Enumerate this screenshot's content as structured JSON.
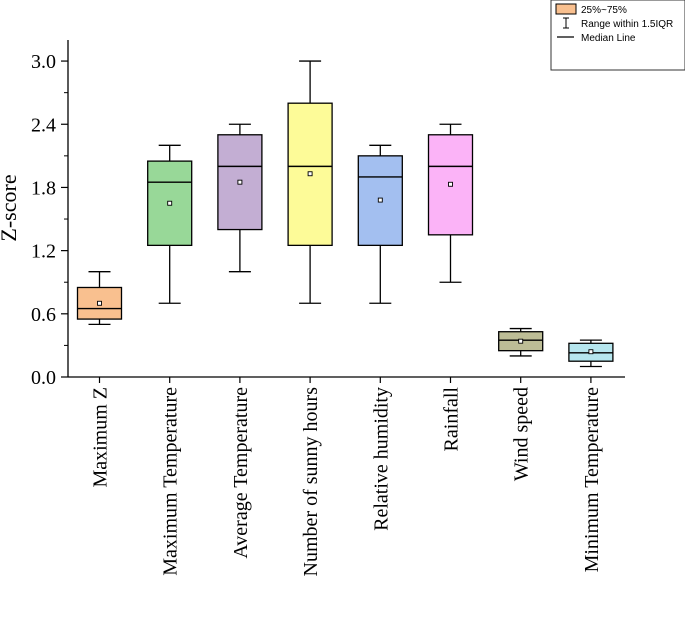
{
  "chart_data": {
    "type": "box",
    "ylabel": "Z-score",
    "xlabel": "",
    "ylim": [
      0,
      3.2
    ],
    "yticks": [
      "0.0",
      "0.6",
      "1.2",
      "1.8",
      "2.4",
      "3.0"
    ],
    "categories": [
      "Maximum Z",
      "Maximum  Temperature",
      "Average Temperature",
      "Number of sunny hours",
      "Relative humidity",
      "Rainfall",
      "Wind speed",
      "Minimum Temperature"
    ],
    "boxes": [
      {
        "whisker_low": 0.5,
        "q1": 0.55,
        "median": 0.65,
        "q3": 0.85,
        "whisker_high": 1.0,
        "mean": 0.7,
        "color": "#f9c08f"
      },
      {
        "whisker_low": 0.7,
        "q1": 1.25,
        "median": 1.85,
        "q3": 2.05,
        "whisker_high": 2.2,
        "mean": 1.65,
        "color": "#98d898"
      },
      {
        "whisker_low": 1.0,
        "q1": 1.4,
        "median": 2.0,
        "q3": 2.3,
        "whisker_high": 2.4,
        "mean": 1.85,
        "color": "#c3aed3"
      },
      {
        "whisker_low": 0.7,
        "q1": 1.25,
        "median": 2.0,
        "q3": 2.6,
        "whisker_high": 3.0,
        "mean": 1.93,
        "color": "#fdfb98"
      },
      {
        "whisker_low": 0.7,
        "q1": 1.25,
        "median": 1.9,
        "q3": 2.1,
        "whisker_high": 2.2,
        "mean": 1.68,
        "color": "#a3bff0"
      },
      {
        "whisker_low": 0.9,
        "q1": 1.35,
        "median": 2.0,
        "q3": 2.3,
        "whisker_high": 2.4,
        "mean": 1.83,
        "color": "#fbb3f7"
      },
      {
        "whisker_low": 0.2,
        "q1": 0.25,
        "median": 0.35,
        "q3": 0.43,
        "whisker_high": 0.46,
        "mean": 0.34,
        "color": "#bdbd96"
      },
      {
        "whisker_low": 0.1,
        "q1": 0.15,
        "median": 0.23,
        "q3": 0.32,
        "whisker_high": 0.35,
        "mean": 0.24,
        "color": "#b6e6ee"
      }
    ],
    "legend": {
      "position": "top-right",
      "items": [
        {
          "label": "25%~75%",
          "symbol": "box",
          "color": "#f9c08f"
        },
        {
          "label": "Range within 1.5IQR",
          "symbol": "whisker"
        },
        {
          "label": "Median Line",
          "symbol": "line"
        }
      ]
    }
  }
}
